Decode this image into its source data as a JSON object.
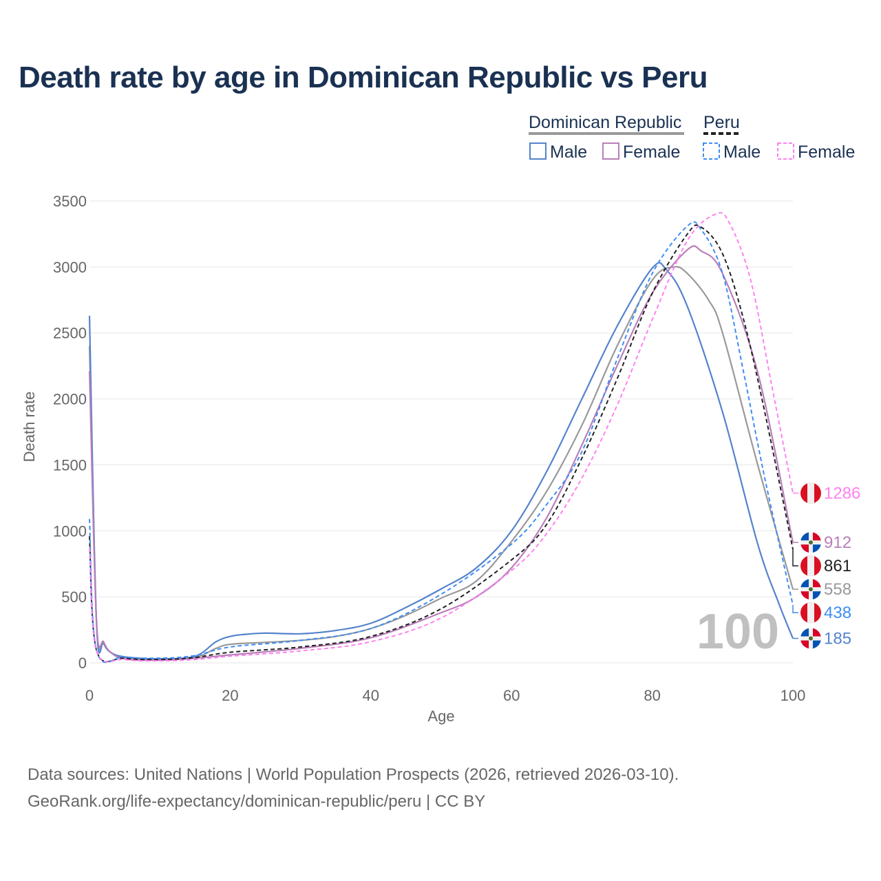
{
  "title": "Death rate by age in Dominican Republic vs Peru",
  "legend": {
    "groups": [
      {
        "name": "Dominican Republic",
        "line_color": "#999999",
        "dash": false
      },
      {
        "name": "Peru",
        "line_color": "#222222",
        "dash": true
      }
    ],
    "items": [
      {
        "label": "Male",
        "color": "#5483cc",
        "dash": false
      },
      {
        "label": "Female",
        "color": "#b87fb8",
        "dash": false
      },
      {
        "label": "Male",
        "color": "#3d8cf5",
        "dash": true
      },
      {
        "label": "Female",
        "color": "#ff80f0",
        "dash": true
      }
    ]
  },
  "frame_label": "100",
  "footer": {
    "line1": "Data sources: United Nations | World Population Prospects (2026, retrieved 2026-03-10).",
    "line2": "GeoRank.org/life-expectancy/dominican-republic/peru | CC BY"
  },
  "chart_data": {
    "type": "line",
    "title": "Death rate by age in Dominican Republic vs Peru",
    "xlabel": "Age",
    "ylabel": "Death rate",
    "xlim": [
      0,
      100
    ],
    "ylim": [
      0,
      3500
    ],
    "xticks": [
      0,
      20,
      40,
      60,
      80,
      100
    ],
    "yticks": [
      0,
      500,
      1000,
      1500,
      2000,
      2500,
      3000,
      3500
    ],
    "grid": true,
    "legend_position": "top-right",
    "series": [
      {
        "name": "Dominican Republic Total",
        "country": "dr",
        "color": "#999999",
        "dash": false,
        "end_label": "558",
        "x": [
          0,
          1,
          2,
          3,
          5,
          10,
          15,
          18,
          20,
          25,
          30,
          35,
          40,
          45,
          50,
          55,
          60,
          65,
          70,
          75,
          80,
          83,
          85,
          88,
          90,
          95,
          100
        ],
        "y": [
          2400,
          310,
          150,
          80,
          40,
          25,
          40,
          110,
          140,
          155,
          170,
          200,
          260,
          360,
          490,
          620,
          920,
          1300,
          1800,
          2400,
          2900,
          3000,
          2950,
          2750,
          2500,
          1500,
          558
        ]
      },
      {
        "name": "Dominican Republic Male",
        "country": "dr",
        "color": "#5483cc",
        "dash": false,
        "end_label": "185",
        "x": [
          0,
          1,
          2,
          3,
          5,
          10,
          15,
          18,
          20,
          22,
          25,
          30,
          35,
          40,
          45,
          50,
          55,
          60,
          65,
          70,
          75,
          80,
          82,
          85,
          90,
          95,
          98,
          100
        ],
        "y": [
          2630,
          300,
          150,
          80,
          45,
          30,
          50,
          160,
          200,
          215,
          225,
          220,
          245,
          300,
          420,
          560,
          720,
          1000,
          1450,
          2000,
          2550,
          2990,
          2980,
          2700,
          1900,
          900,
          450,
          185
        ]
      },
      {
        "name": "Dominican Republic Female",
        "country": "dr",
        "color": "#b87fb8",
        "dash": false,
        "end_label": "912",
        "x": [
          0,
          1,
          2,
          3,
          5,
          10,
          15,
          20,
          30,
          40,
          50,
          55,
          60,
          65,
          70,
          75,
          80,
          85,
          87,
          90,
          95,
          100
        ],
        "y": [
          2210,
          310,
          160,
          80,
          30,
          20,
          35,
          60,
          110,
          190,
          380,
          500,
          720,
          1100,
          1650,
          2250,
          2800,
          3130,
          3120,
          2950,
          2200,
          912
        ]
      },
      {
        "name": "Peru Total",
        "country": "pe",
        "color": "#222222",
        "dash": true,
        "end_label": "861",
        "x": [
          0,
          1,
          5,
          10,
          15,
          20,
          30,
          40,
          50,
          60,
          65,
          70,
          75,
          80,
          85,
          87,
          90,
          93,
          96,
          100
        ],
        "y": [
          960,
          95,
          35,
          25,
          40,
          80,
          120,
          200,
          410,
          780,
          1050,
          1550,
          2150,
          2800,
          3250,
          3300,
          3100,
          2600,
          1900,
          861
        ]
      },
      {
        "name": "Peru Male",
        "country": "pe",
        "color": "#3d8cf5",
        "dash": true,
        "end_label": "438",
        "x": [
          0,
          1,
          5,
          10,
          15,
          20,
          30,
          40,
          50,
          60,
          65,
          70,
          75,
          80,
          85,
          87,
          90,
          93,
          96,
          100
        ],
        "y": [
          1090,
          95,
          45,
          35,
          55,
          120,
          170,
          260,
          520,
          900,
          1200,
          1600,
          2300,
          2950,
          3310,
          3280,
          2950,
          2200,
          1400,
          438
        ]
      },
      {
        "name": "Peru Female",
        "country": "pe",
        "color": "#ff80f0",
        "dash": true,
        "end_label": "1286",
        "x": [
          0,
          1,
          5,
          10,
          15,
          20,
          30,
          40,
          50,
          60,
          65,
          70,
          75,
          80,
          85,
          89,
          91,
          94,
          97,
          100
        ],
        "y": [
          870,
          90,
          25,
          15,
          25,
          50,
          90,
          160,
          340,
          700,
          980,
          1400,
          1950,
          2600,
          3200,
          3400,
          3330,
          2900,
          2100,
          1286
        ]
      }
    ]
  }
}
